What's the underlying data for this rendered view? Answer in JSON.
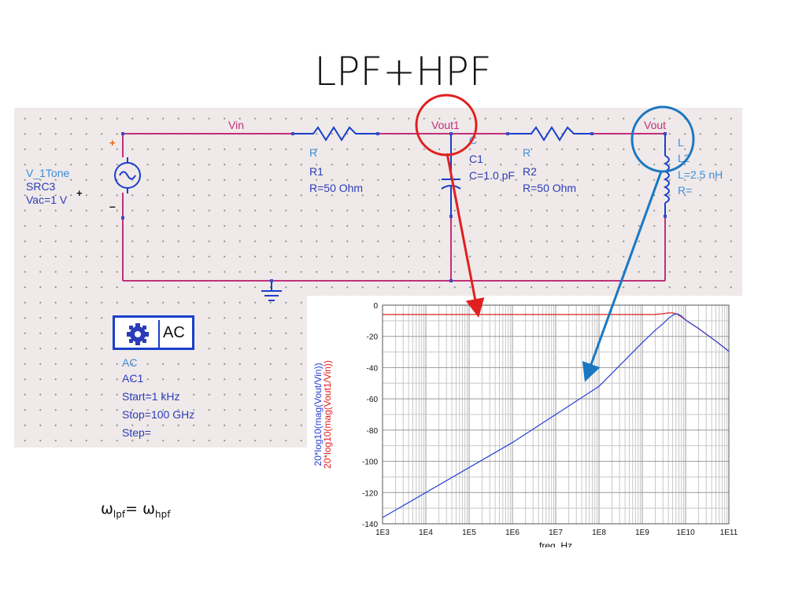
{
  "title": "LPF+HPF",
  "nodes": {
    "vin": "Vin",
    "vout1": "Vout1",
    "vout": "Vout"
  },
  "source": {
    "l1": "V_1Tone",
    "l2": "SRC3",
    "l3": "Vac=1 V",
    "plus_left": "+",
    "plus_right": "+",
    "minus": "–"
  },
  "r1": {
    "l1": "R",
    "l2": "R1",
    "l3": "R=50 Ohm"
  },
  "c1": {
    "l0": "C",
    "l1": "C1",
    "l2": "C=1.0 pF"
  },
  "r2": {
    "l1": "R",
    "l2": "R2",
    "l3": "R=50 Ohm"
  },
  "l2": {
    "l1": "L",
    "l2": "L2",
    "l3": "L=2.5 nH",
    "l4": "R="
  },
  "ac": {
    "box": "AC",
    "l1": "AC",
    "l2": "AC1",
    "l3": "Start=1 kHz",
    "l4": "Stop=100 GHz",
    "l5": "Step="
  },
  "omega": {
    "w1": "ω",
    "s1": "lpf",
    "eq": "= ω",
    "s2": "hpf"
  },
  "colors": {
    "wire": "#c0307a",
    "component": "#1a3fc8",
    "red_series": "#e02020",
    "blue_series": "#2840d8",
    "red_circle": "#e02020",
    "blue_circle": "#1a78c2"
  },
  "chart_data": {
    "type": "line",
    "xlabel": "freq, Hz",
    "x_scale": "log",
    "x_ticks": [
      "1E3",
      "1E4",
      "1E5",
      "1E6",
      "1E7",
      "1E8",
      "1E9",
      "1E10",
      "1E11"
    ],
    "y_ticks": [
      "0",
      "-20",
      "-40",
      "-60",
      "-80",
      "-100",
      "-120",
      "-140"
    ],
    "ylim": [
      -140,
      0
    ],
    "xlim": [
      1000,
      100000000000
    ],
    "grid": true,
    "series": [
      {
        "name": "20*log10(mag(Vout1/Vin))",
        "color": "#e02020",
        "x": [
          1000,
          100000000,
          1000000000,
          2000000000,
          3000000000,
          4000000000,
          5000000000,
          6000000000,
          7000000000,
          8000000000,
          10000000000,
          20000000000,
          50000000000,
          100000000000
        ],
        "y": [
          -6,
          -6,
          -6,
          -6,
          -5.5,
          -5,
          -5,
          -5.5,
          -6.5,
          -7.5,
          -9.5,
          -15,
          -23,
          -29.5
        ]
      },
      {
        "name": "20*log10(mag(Vout/Vin))",
        "color": "#2840d8",
        "x": [
          1000,
          1000000,
          100000000,
          1000000000,
          2000000000,
          3000000000,
          4000000000,
          5000000000,
          6000000000,
          7000000000,
          8000000000,
          10000000000,
          20000000000,
          50000000000,
          100000000000
        ],
        "y": [
          -136,
          -88,
          -52,
          -24,
          -16,
          -12,
          -8.5,
          -6.5,
          -5.5,
          -6,
          -7,
          -9.5,
          -15,
          -23,
          -29.5
        ]
      }
    ]
  }
}
